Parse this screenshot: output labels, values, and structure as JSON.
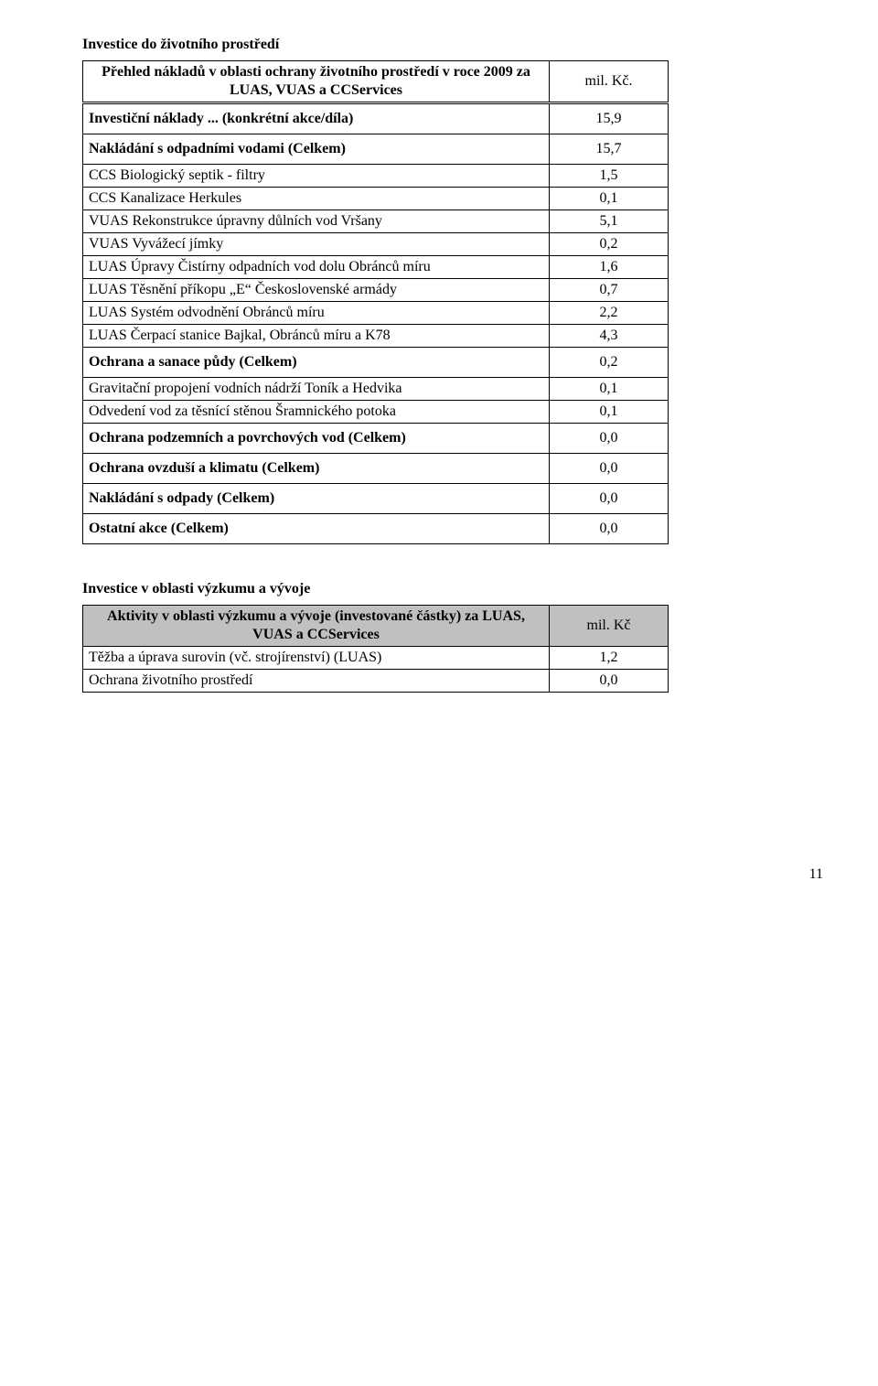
{
  "section1": {
    "heading": "Investice do životního prostředí"
  },
  "table1": {
    "headerRow": {
      "left": "Přehled nákladů v oblasti ochrany životního prostředí v roce\n2009 za LUAS, VUAS a CCServices",
      "right": "mil. Kč."
    },
    "rows": [
      {
        "label": "Investiční náklady ... (konkrétní akce/díla)",
        "value": "15,9",
        "bold": true,
        "topBorder": "double",
        "bottomBorder": "single"
      },
      {
        "label": "Nakládání s odpadními vodami (Celkem)",
        "value": "15,7",
        "bold": true,
        "topBorder": "none",
        "bottomBorder": "single"
      },
      {
        "label": "CCS Biologický septik - filtry",
        "value": "1,5",
        "bold": false,
        "topBorder": "none",
        "bottomBorder": "single"
      },
      {
        "label": "CCS Kanalizace Herkules",
        "value": "0,1",
        "bold": false,
        "topBorder": "none",
        "bottomBorder": "single"
      },
      {
        "label": "VUAS Rekonstrukce úpravny důlních vod Vršany",
        "value": "5,1",
        "bold": false,
        "topBorder": "none",
        "bottomBorder": "single"
      },
      {
        "label": "VUAS Vyvážecí jímky",
        "value": "0,2",
        "bold": false,
        "topBorder": "none",
        "bottomBorder": "single"
      },
      {
        "label": "LUAS Úpravy Čistírny odpadních vod dolu Obránců míru",
        "value": "1,6",
        "bold": false,
        "topBorder": "none",
        "bottomBorder": "single"
      },
      {
        "label": "LUAS Těsnění příkopu „E“ Československé armády",
        "value": "0,7",
        "bold": false,
        "topBorder": "none",
        "bottomBorder": "single"
      },
      {
        "label": "LUAS Systém odvodnění Obránců míru",
        "value": "2,2",
        "bold": false,
        "topBorder": "none",
        "bottomBorder": "single"
      },
      {
        "label": "LUAS Čerpací stanice Bajkal, Obránců míru a K78",
        "value": "4,3",
        "bold": false,
        "topBorder": "none",
        "bottomBorder": "single"
      },
      {
        "label": "Ochrana a sanace půdy (Celkem)",
        "value": "0,2",
        "bold": true,
        "topBorder": "none",
        "bottomBorder": "single"
      },
      {
        "label": "Gravitační propojení vodních nádrží Toník a Hedvika",
        "value": "0,1",
        "bold": false,
        "topBorder": "none",
        "bottomBorder": "single"
      },
      {
        "label": "Odvedení vod za těsnící stěnou Šramnického potoka",
        "value": "0,1",
        "bold": false,
        "topBorder": "none",
        "bottomBorder": "single"
      },
      {
        "label": "Ochrana podzemních a povrchových vod (Celkem)",
        "value": "0,0",
        "bold": true,
        "topBorder": "none",
        "bottomBorder": "single"
      },
      {
        "label": "Ochrana ovzduší a klimatu (Celkem)",
        "value": "0,0",
        "bold": true,
        "topBorder": "none",
        "bottomBorder": "single"
      },
      {
        "label": "Nakládání s odpady (Celkem)",
        "value": "0,0",
        "bold": true,
        "topBorder": "none",
        "bottomBorder": "single"
      },
      {
        "label": "Ostatní akce (Celkem)",
        "value": "0,0",
        "bold": true,
        "topBorder": "none",
        "bottomBorder": "single"
      }
    ]
  },
  "section2": {
    "heading": "Investice v oblasti výzkumu a vývoje"
  },
  "table2": {
    "headerRow": {
      "left": "Aktivity v oblasti výzkumu a vývoje (investované\nčástky) za LUAS, VUAS a CCServices",
      "right": "mil. Kč"
    },
    "rows": [
      {
        "label": "Těžba a úprava surovin (vč. strojírenství) (LUAS)",
        "value": "1,2"
      },
      {
        "label": "Ochrana životního prostředí",
        "value": "0,0"
      }
    ]
  },
  "pageNumber": "11"
}
